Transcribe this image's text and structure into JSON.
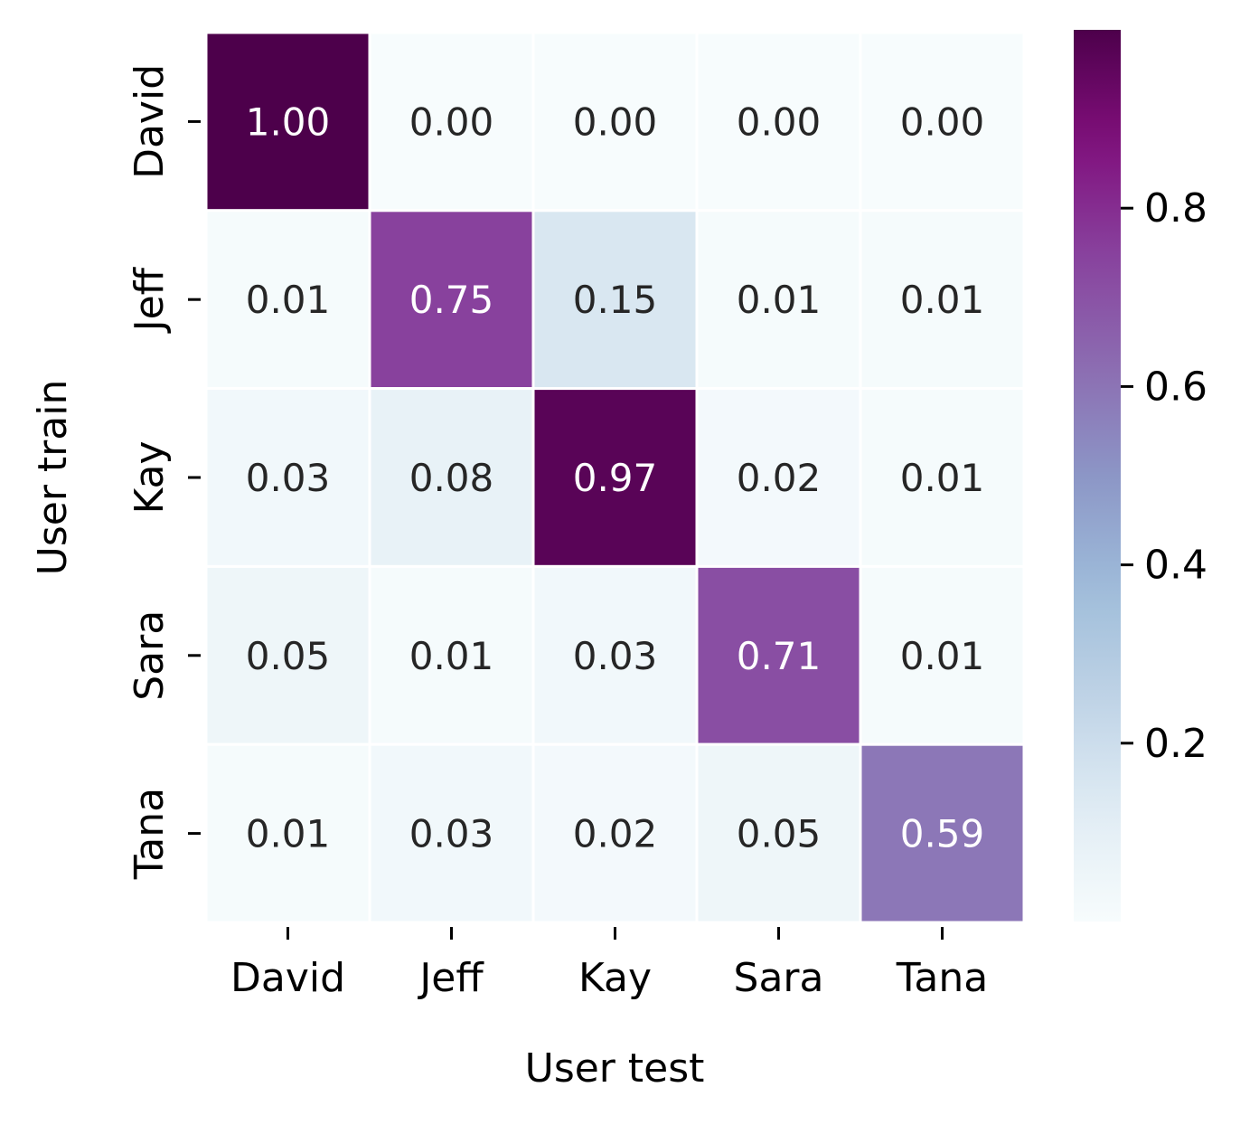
{
  "chart_data": {
    "type": "heatmap",
    "title": "",
    "xlabel": "User test",
    "ylabel": "User train",
    "x_categories": [
      "David",
      "Jeff",
      "Kay",
      "Sara",
      "Tana"
    ],
    "y_categories": [
      "David",
      "Jeff",
      "Kay",
      "Sara",
      "Tana"
    ],
    "values": [
      [
        1.0,
        0.0,
        0.0,
        0.0,
        0.0
      ],
      [
        0.01,
        0.75,
        0.15,
        0.01,
        0.01
      ],
      [
        0.03,
        0.08,
        0.97,
        0.02,
        0.01
      ],
      [
        0.05,
        0.01,
        0.03,
        0.71,
        0.01
      ],
      [
        0.01,
        0.03,
        0.02,
        0.05,
        0.59
      ]
    ],
    "value_format": "2 decimals",
    "colormap": "BuPu",
    "colorbar": {
      "range": [
        0.0,
        1.0
      ],
      "ticks": [
        "0.2",
        "0.4",
        "0.6",
        "0.8"
      ]
    },
    "grid": false,
    "legend": "colorbar-right",
    "colors": {
      "dark_text": "#262626",
      "light_text": "#ffffff",
      "cell_border": "#ffffff"
    }
  }
}
